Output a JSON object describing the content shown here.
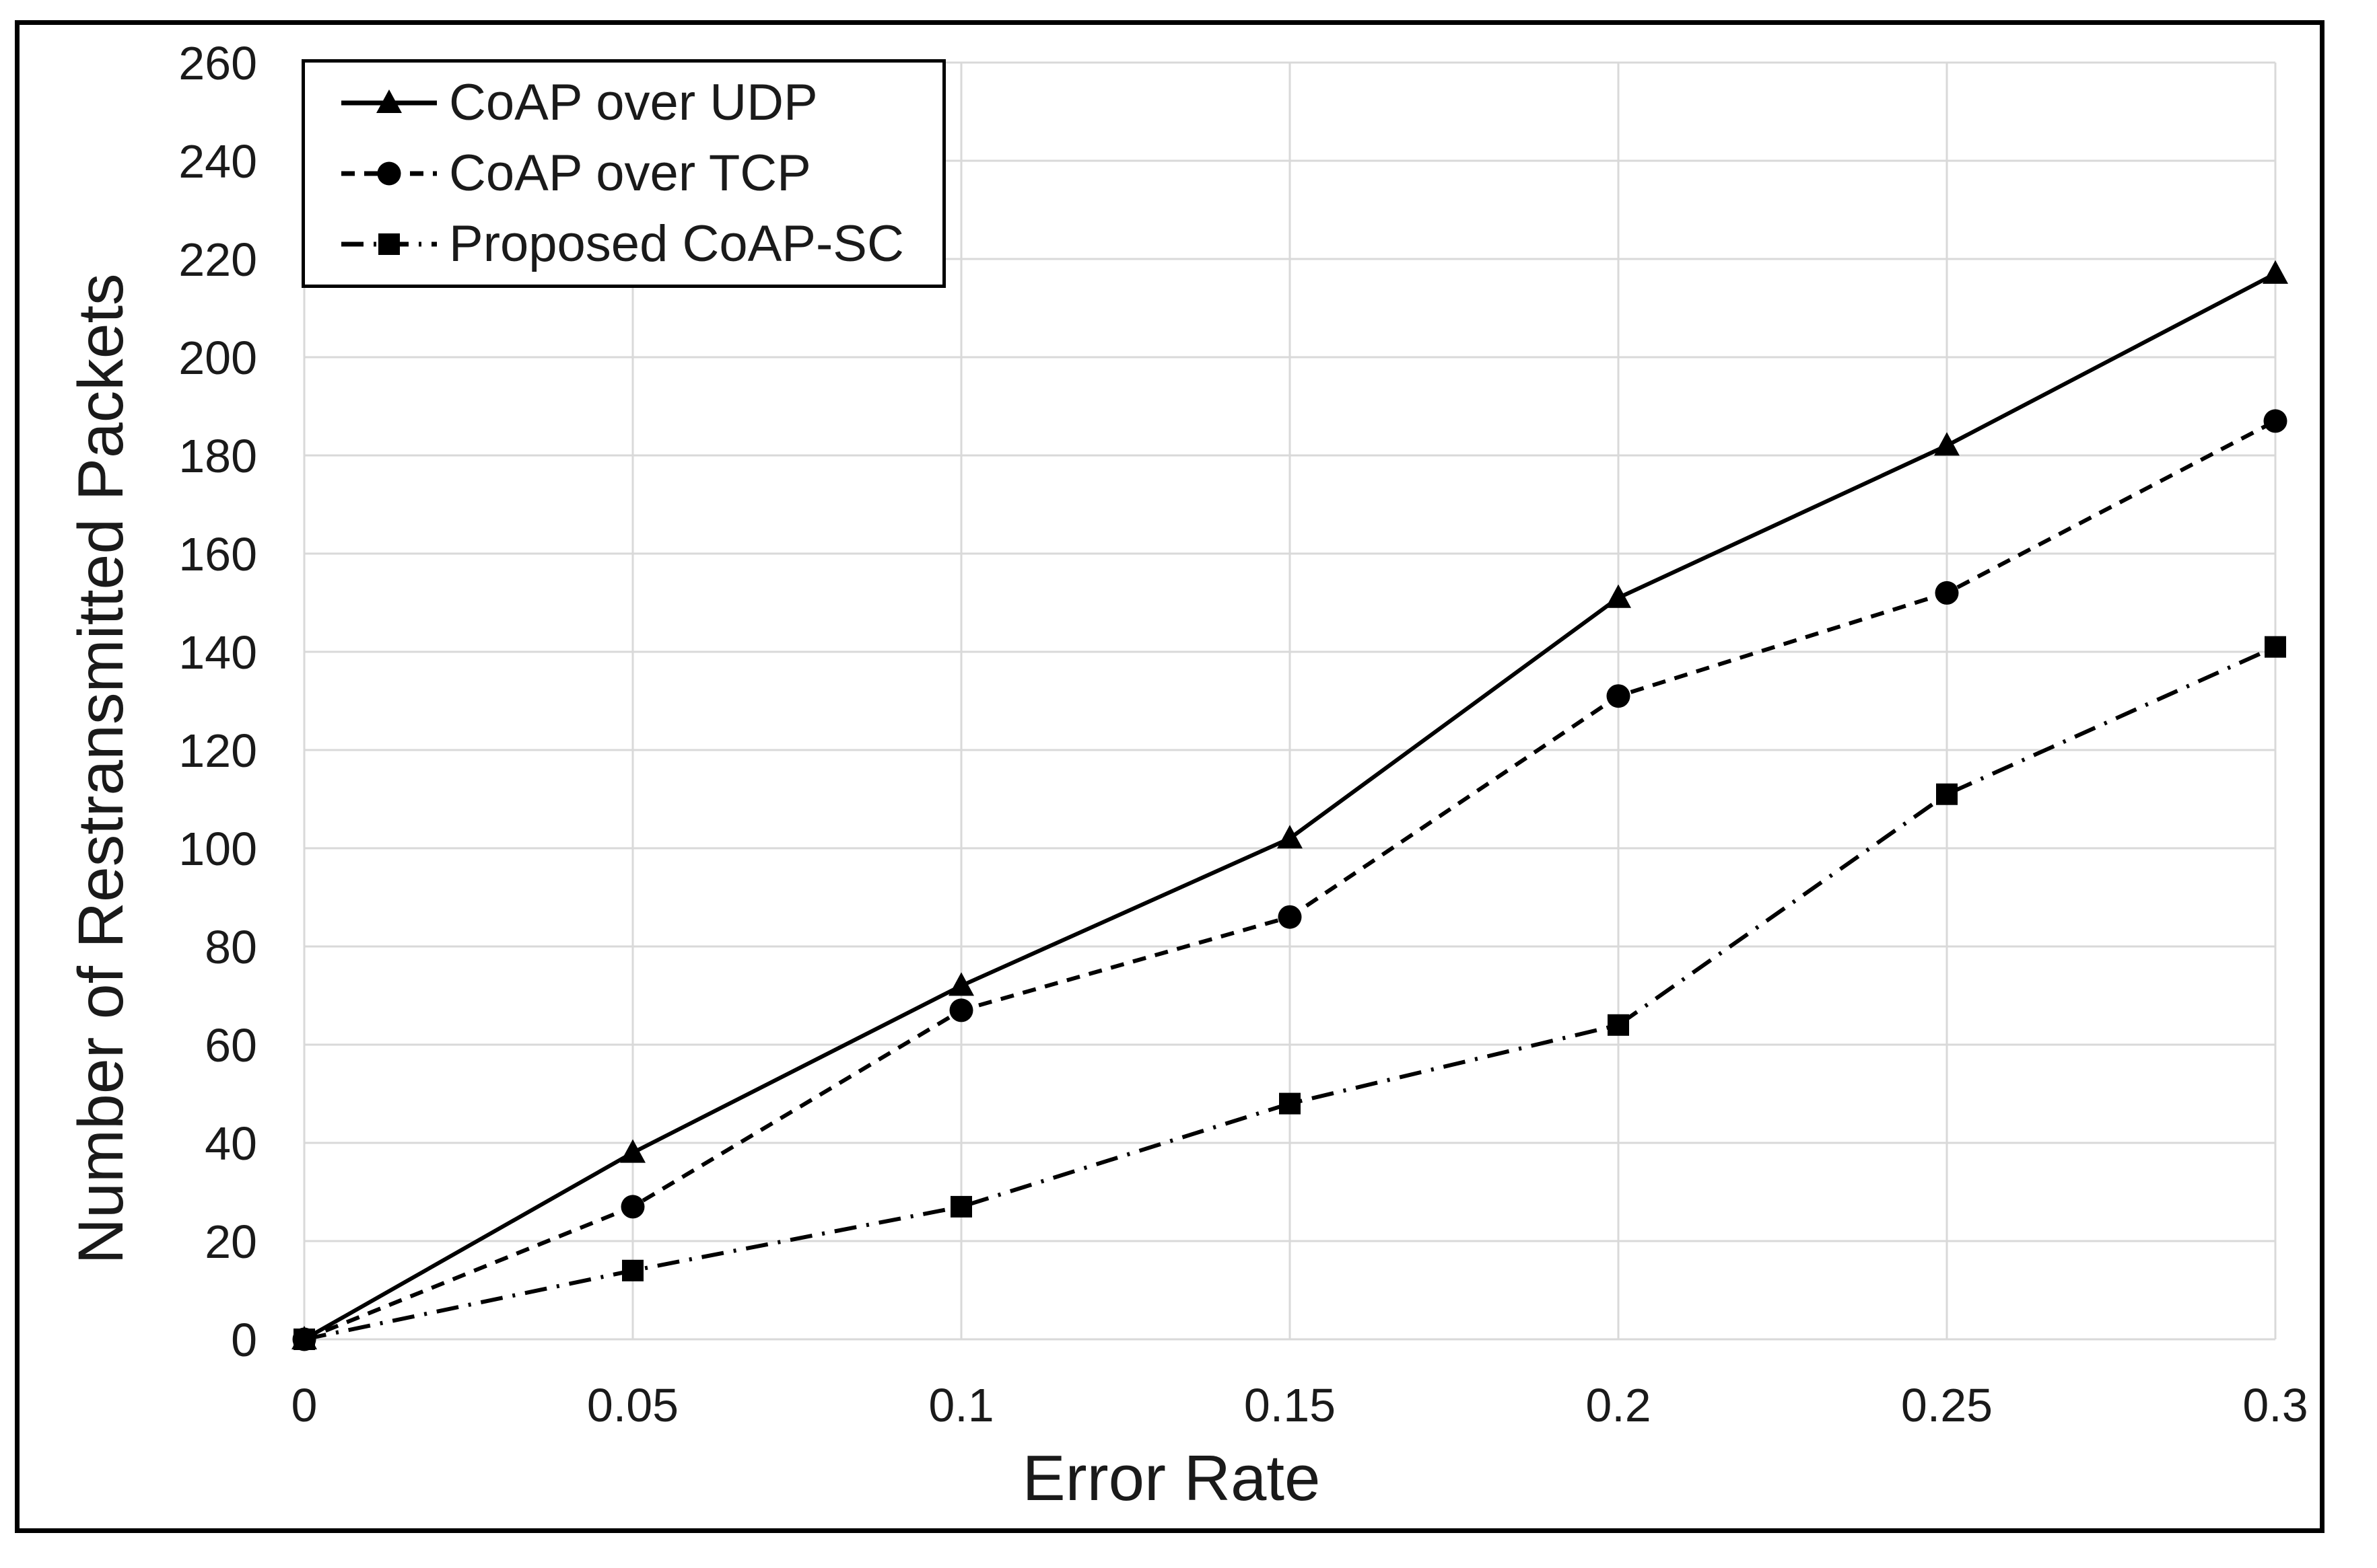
{
  "figure": {
    "background_color": "#ffffff",
    "frame_border_color": "#000000"
  },
  "chart_data": {
    "type": "line",
    "title": "",
    "xlabel": "Error Rate",
    "ylabel": "Number of Restransmitted Packets",
    "xlim": [
      0,
      0.3
    ],
    "ylim": [
      0,
      260
    ],
    "grid": true,
    "gridline_color": "#d9d9d9",
    "text_color": "#1a1a1a",
    "series_color": "#000000",
    "legend_position": "top-left",
    "x": [
      0,
      0.05,
      0.1,
      0.15,
      0.2,
      0.25,
      0.3
    ],
    "x_tick_labels": [
      "0",
      "0.05",
      "0.1",
      "0.15",
      "0.2",
      "0.25",
      "0.3"
    ],
    "y_ticks": [
      0,
      20,
      40,
      60,
      80,
      100,
      120,
      140,
      160,
      180,
      200,
      220,
      240,
      260
    ],
    "y_tick_labels": [
      "0",
      "20",
      "40",
      "60",
      "80",
      "100",
      "120",
      "140",
      "160",
      "180",
      "200",
      "220",
      "240",
      "260"
    ],
    "series": [
      {
        "name": "CoAP over UDP",
        "values": [
          0,
          38,
          72,
          102,
          151,
          182,
          217
        ],
        "line_style": "solid",
        "marker": "triangle"
      },
      {
        "name": "CoAP over TCP",
        "values": [
          0,
          27,
          67,
          86,
          131,
          152,
          187
        ],
        "line_style": "dashed",
        "marker": "circle"
      },
      {
        "name": "Proposed CoAP-SC",
        "values": [
          0,
          14,
          27,
          48,
          64,
          111,
          141
        ],
        "line_style": "dashdot",
        "marker": "square"
      }
    ]
  }
}
